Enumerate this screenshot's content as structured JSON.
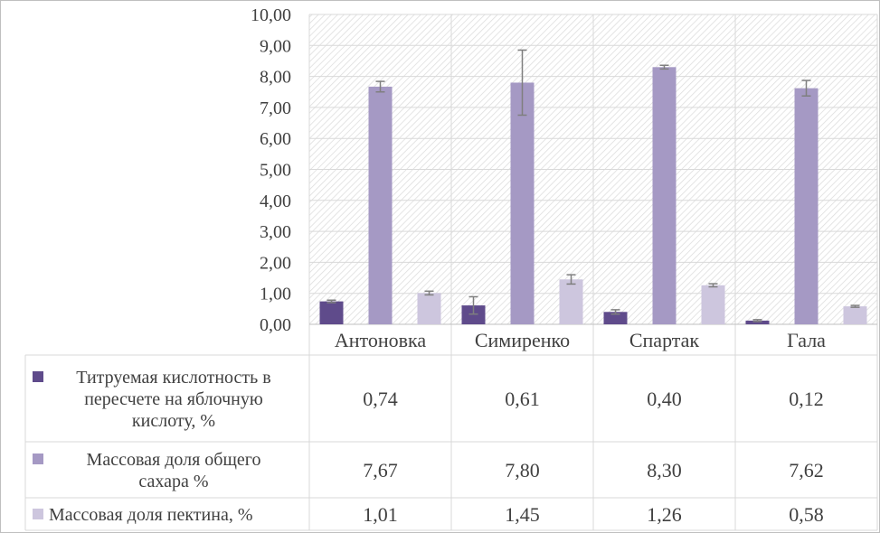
{
  "chart_data": {
    "type": "bar",
    "categories": [
      "Антоновка",
      "Симиренко",
      "Спартак",
      "Гала"
    ],
    "series": [
      {
        "name": "Титруемая кислотность в пересчете на яблочную кислоту, %",
        "legend_lines": [
          "Титруемая кислотность в",
          "пересчете на яблочную",
          "кислоту, %"
        ],
        "values": [
          0.74,
          0.61,
          0.4,
          0.12
        ],
        "table_values": [
          "0,74",
          "0,61",
          "0,40",
          "0,12"
        ],
        "errors": [
          0.04,
          0.28,
          0.07,
          0.03
        ],
        "color": "#5f4b8b"
      },
      {
        "name": "Массовая доля общего сахара %",
        "legend_lines": [
          "Массовая доля общего",
          "сахара %"
        ],
        "values": [
          7.67,
          7.8,
          8.3,
          7.62
        ],
        "table_values": [
          "7,67",
          "7,80",
          "8,30",
          "7,62"
        ],
        "errors": [
          0.17,
          1.05,
          0.06,
          0.25
        ],
        "color": "#a599c4"
      },
      {
        "name": "Массовая доля пектина, %",
        "legend_lines": [
          "Массовая доля пектина, %"
        ],
        "values": [
          1.01,
          1.45,
          1.26,
          0.58
        ],
        "table_values": [
          "1,01",
          "1,45",
          "1,26",
          "0,58"
        ],
        "errors": [
          0.06,
          0.15,
          0.05,
          0.03
        ],
        "color": "#cdc6de"
      }
    ],
    "y_ticks": [
      "0,00",
      "1,00",
      "2,00",
      "3,00",
      "4,00",
      "5,00",
      "6,00",
      "7,00",
      "8,00",
      "9,00",
      "10,00"
    ],
    "ylim": [
      0,
      10
    ],
    "grid": true,
    "error_bars": true,
    "legend": "data-table",
    "plot_background": "hatched"
  }
}
